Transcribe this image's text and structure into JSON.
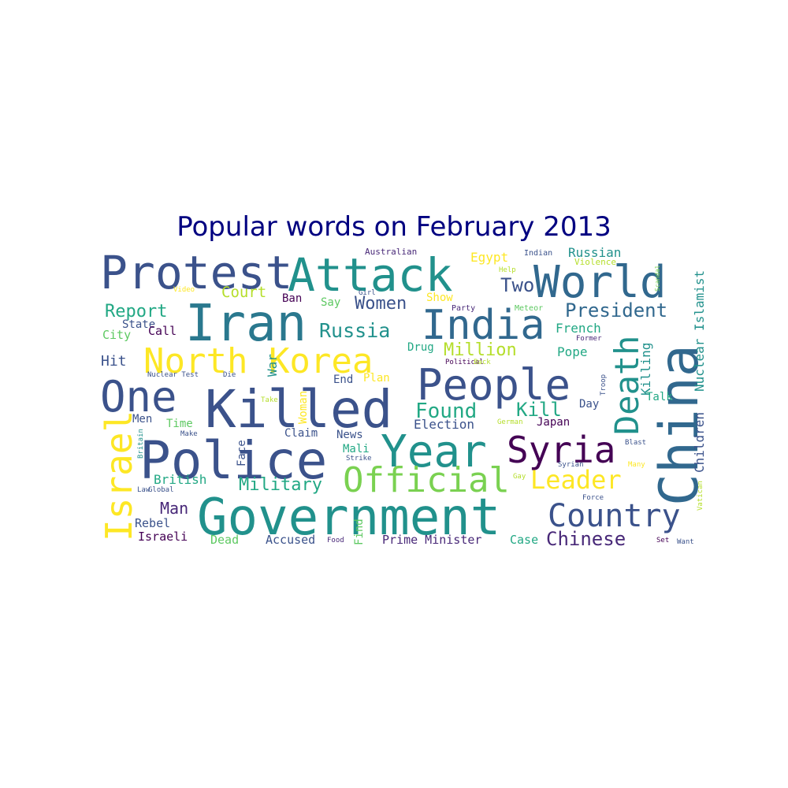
{
  "title": "Popular words on February 2013",
  "colors": {
    "title": "#000080",
    "palette": [
      "#440154",
      "#3b528b",
      "#21918c",
      "#5ec962",
      "#fde725"
    ]
  },
  "chart_data": {
    "type": "wordcloud",
    "words": [
      {
        "text": "Protest",
        "color": "#3b528b"
      },
      {
        "text": "Attack",
        "color": "#21918c"
      },
      {
        "text": "World",
        "color": "#31688e"
      },
      {
        "text": "Iran",
        "color": "#2a788e"
      },
      {
        "text": "India",
        "color": "#31688e"
      },
      {
        "text": "China",
        "color": "#31688e"
      },
      {
        "text": "North Korea",
        "color": "#fde725"
      },
      {
        "text": "People",
        "color": "#3b528b"
      },
      {
        "text": "One",
        "color": "#3b528b"
      },
      {
        "text": "Killed",
        "color": "#3b528b"
      },
      {
        "text": "Death",
        "color": "#21918c"
      },
      {
        "text": "Israel",
        "color": "#fde725"
      },
      {
        "text": "Police",
        "color": "#3b528b"
      },
      {
        "text": "Year",
        "color": "#21918c"
      },
      {
        "text": "Syria",
        "color": "#440154"
      },
      {
        "text": "Official",
        "color": "#7ad151"
      },
      {
        "text": "Leader",
        "color": "#fde725"
      },
      {
        "text": "Government",
        "color": "#21918c"
      },
      {
        "text": "Country",
        "color": "#3b528b"
      },
      {
        "text": "Chinese",
        "color": "#482878"
      },
      {
        "text": "Russia",
        "color": "#21918c"
      },
      {
        "text": "Women",
        "color": "#3b528b"
      },
      {
        "text": "Two",
        "color": "#3b528b"
      },
      {
        "text": "President",
        "color": "#31688e"
      },
      {
        "text": "Report",
        "color": "#22a884"
      },
      {
        "text": "Court",
        "color": "#b5de2b"
      },
      {
        "text": "Found",
        "color": "#22a884"
      },
      {
        "text": "Kill",
        "color": "#22a884"
      },
      {
        "text": "Military",
        "color": "#22a884"
      },
      {
        "text": "Million",
        "color": "#b5de2b"
      },
      {
        "text": "Man",
        "color": "#482878"
      },
      {
        "text": "Election",
        "color": "#3b528b"
      },
      {
        "text": "Nuclear Islamist",
        "color": "#21918c"
      },
      {
        "text": "Children",
        "color": "#3b528b"
      },
      {
        "text": "Killing",
        "color": "#21918c"
      },
      {
        "text": "Egypt",
        "color": "#fde725"
      },
      {
        "text": "Russian",
        "color": "#21918c"
      },
      {
        "text": "Australian",
        "color": "#482878"
      },
      {
        "text": "Indian",
        "color": "#3b528b"
      },
      {
        "text": "Scandal",
        "color": "#7ad151"
      },
      {
        "text": "Violence",
        "color": "#b5de2b"
      },
      {
        "text": "Help",
        "color": "#b5de2b"
      },
      {
        "text": "Video",
        "color": "#fde725"
      },
      {
        "text": "State",
        "color": "#3b528b"
      },
      {
        "text": "Ban",
        "color": "#440154"
      },
      {
        "text": "Say",
        "color": "#5ec962"
      },
      {
        "text": "Show",
        "color": "#fde725"
      },
      {
        "text": "Girl",
        "color": "#3b528b"
      },
      {
        "text": "Party",
        "color": "#482878"
      },
      {
        "text": "Meteor",
        "color": "#5ec962"
      },
      {
        "text": "Call",
        "color": "#440154"
      },
      {
        "text": "City",
        "color": "#5ec962"
      },
      {
        "text": "Hit",
        "color": "#3b528b"
      },
      {
        "text": "War",
        "color": "#21918c"
      },
      {
        "text": "Drug",
        "color": "#22a884"
      },
      {
        "text": "Political",
        "color": "#440154"
      },
      {
        "text": "Back",
        "color": "#b5de2b"
      },
      {
        "text": "Former",
        "color": "#482878"
      },
      {
        "text": "French",
        "color": "#22a884"
      },
      {
        "text": "Pope",
        "color": "#22a884"
      },
      {
        "text": "Nuclear Test",
        "color": "#3b528b"
      },
      {
        "text": "Die",
        "color": "#3b528b"
      },
      {
        "text": "End",
        "color": "#3b528b"
      },
      {
        "text": "Plan",
        "color": "#fde725"
      },
      {
        "text": "Troop",
        "color": "#3b528b"
      },
      {
        "text": "Talk",
        "color": "#22a884"
      },
      {
        "text": "Take",
        "color": "#b5de2b"
      },
      {
        "text": "Woman",
        "color": "#fde725"
      },
      {
        "text": "Day",
        "color": "#3b528b"
      },
      {
        "text": "Men",
        "color": "#3b528b"
      },
      {
        "text": "Time",
        "color": "#5ec962"
      },
      {
        "text": "Make",
        "color": "#3b528b"
      },
      {
        "text": "Britain",
        "color": "#21918c"
      },
      {
        "text": "Claim",
        "color": "#3b528b"
      },
      {
        "text": "News",
        "color": "#3b528b"
      },
      {
        "text": "German",
        "color": "#b5de2b"
      },
      {
        "text": "Japan",
        "color": "#440154"
      },
      {
        "text": "Blast",
        "color": "#3b528b"
      },
      {
        "text": "Face",
        "color": "#3b528b"
      },
      {
        "text": "Mali",
        "color": "#22a884"
      },
      {
        "text": "Strike",
        "color": "#3b528b"
      },
      {
        "text": "Syrian",
        "color": "#3b528b"
      },
      {
        "text": "Many",
        "color": "#fde725"
      },
      {
        "text": "British",
        "color": "#22a884"
      },
      {
        "text": "Gay",
        "color": "#b5de2b"
      },
      {
        "text": "Law",
        "color": "#3b528b"
      },
      {
        "text": "Global",
        "color": "#3b528b"
      },
      {
        "text": "Force",
        "color": "#3b528b"
      },
      {
        "text": "Vatican",
        "color": "#b5de2b"
      },
      {
        "text": "Rebel",
        "color": "#3b528b"
      },
      {
        "text": "Israeli",
        "color": "#440154"
      },
      {
        "text": "Dead",
        "color": "#5ec962"
      },
      {
        "text": "Accused",
        "color": "#3b528b"
      },
      {
        "text": "Food",
        "color": "#482878"
      },
      {
        "text": "Find",
        "color": "#5ec962"
      },
      {
        "text": "Prime Minister",
        "color": "#482878"
      },
      {
        "text": "Case",
        "color": "#22a884"
      },
      {
        "text": "Set",
        "color": "#440154"
      },
      {
        "text": "Want",
        "color": "#3b528b"
      }
    ]
  }
}
